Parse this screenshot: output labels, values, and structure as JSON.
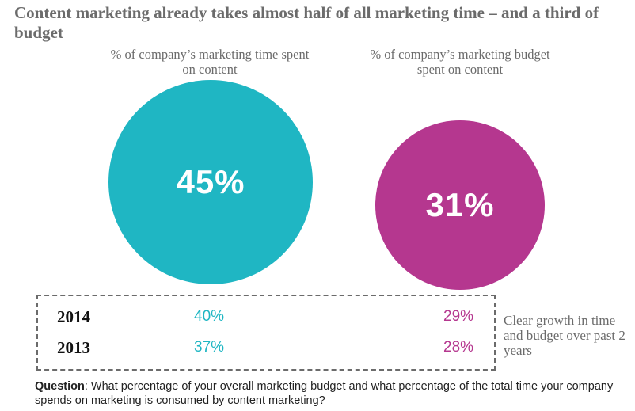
{
  "colors": {
    "time": "#1fb6c3",
    "budget": "#b5378f",
    "heading_gray": "#6b6b6b"
  },
  "chart_data": {
    "type": "bubble",
    "title": "Content marketing already takes almost half of all marketing time – and a third of budget",
    "metrics": [
      {
        "key": "time",
        "label": "% of company’s marketing time spent on content",
        "value": 45,
        "value_label": "45%",
        "history": [
          {
            "year": "2014",
            "value": 40,
            "value_label": "40%"
          },
          {
            "year": "2013",
            "value": 37,
            "value_label": "37%"
          }
        ]
      },
      {
        "key": "budget",
        "label": "% of company’s marketing budget spent on content",
        "value": 31,
        "value_label": "31%",
        "history": [
          {
            "year": "2014",
            "value": 29,
            "value_label": "29%"
          },
          {
            "year": "2013",
            "value": 28,
            "value_label": "28%"
          }
        ]
      }
    ],
    "years": [
      "2014",
      "2013"
    ],
    "annotation": "Clear growth in time and budget over past 2 years"
  },
  "footer": {
    "question_label": "Question",
    "question_text": ": What percentage of your overall marketing budget and what percentage of the total time your company spends on marketing is consumed by content marketing?"
  }
}
